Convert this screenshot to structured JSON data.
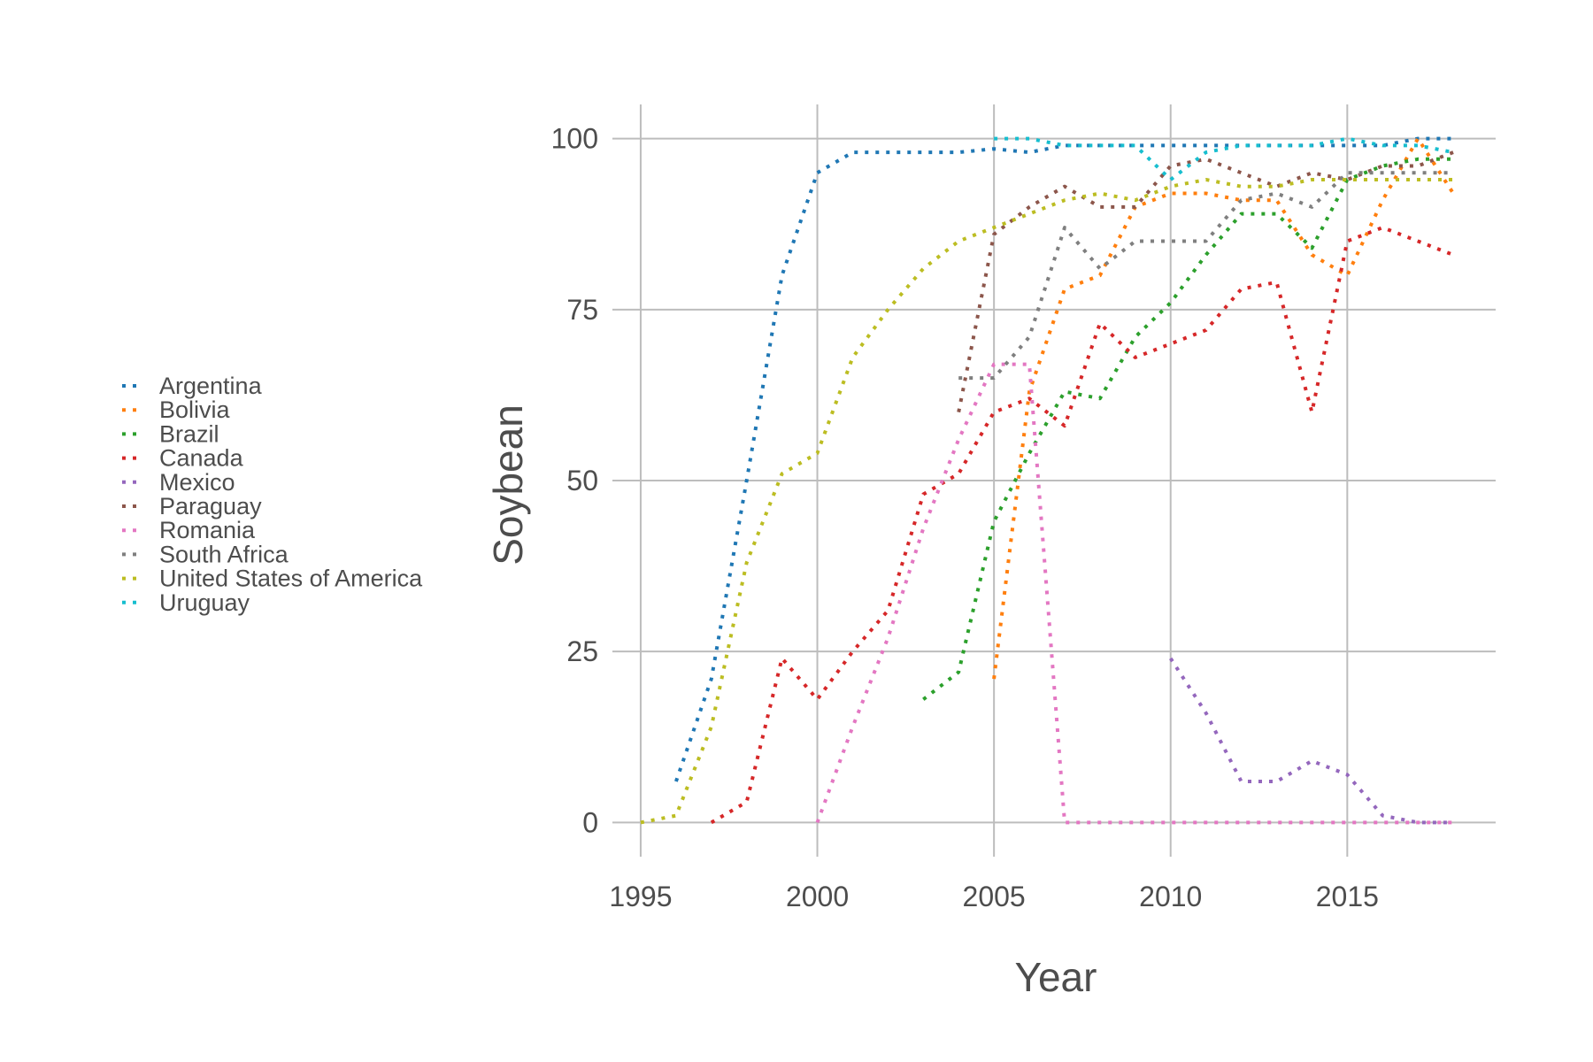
{
  "chart_data": {
    "type": "line",
    "title": "",
    "xlabel": "Year",
    "ylabel": "Soybean",
    "xlim": [
      1994.2,
      2019.2
    ],
    "ylim": [
      -5,
      105
    ],
    "x_ticks": [
      1995,
      2000,
      2005,
      2010,
      2015
    ],
    "y_ticks": [
      0,
      25,
      50,
      75,
      100
    ],
    "grid": true,
    "line_style": "dotted",
    "legend_position": "left",
    "series": [
      {
        "name": "Argentina",
        "color": "#1f77b4",
        "points": [
          [
            1996,
            6
          ],
          [
            1997,
            21
          ],
          [
            1998,
            50
          ],
          [
            1999,
            80
          ],
          [
            2000,
            95
          ],
          [
            2001,
            98
          ],
          [
            2002,
            98
          ],
          [
            2003,
            98
          ],
          [
            2004,
            98
          ],
          [
            2005,
            98.5
          ],
          [
            2006,
            98
          ],
          [
            2007,
            99
          ],
          [
            2008,
            99
          ],
          [
            2009,
            99
          ],
          [
            2010,
            99
          ],
          [
            2011,
            99
          ],
          [
            2012,
            99
          ],
          [
            2013,
            99
          ],
          [
            2014,
            99
          ],
          [
            2015,
            99
          ],
          [
            2016,
            99
          ],
          [
            2017,
            100
          ],
          [
            2018,
            100
          ]
        ]
      },
      {
        "name": "Bolivia",
        "color": "#ff7f0e",
        "points": [
          [
            2005,
            21
          ],
          [
            2006,
            63
          ],
          [
            2007,
            78
          ],
          [
            2008,
            80
          ],
          [
            2009,
            90
          ],
          [
            2010,
            92
          ],
          [
            2011,
            92
          ],
          [
            2012,
            91
          ],
          [
            2013,
            91
          ],
          [
            2014,
            83
          ],
          [
            2015,
            80
          ],
          [
            2016,
            91
          ],
          [
            2017,
            100
          ],
          [
            2018,
            92
          ]
        ]
      },
      {
        "name": "Brazil",
        "color": "#2ca02c",
        "points": [
          [
            2003,
            18
          ],
          [
            2004,
            22
          ],
          [
            2005,
            44
          ],
          [
            2006,
            54
          ],
          [
            2007,
            63
          ],
          [
            2008,
            62
          ],
          [
            2009,
            71
          ],
          [
            2010,
            76
          ],
          [
            2011,
            83
          ],
          [
            2012,
            89
          ],
          [
            2013,
            89
          ],
          [
            2014,
            84
          ],
          [
            2015,
            94
          ],
          [
            2016,
            96
          ],
          [
            2017,
            97
          ],
          [
            2018,
            97
          ]
        ]
      },
      {
        "name": "Canada",
        "color": "#d62728",
        "points": [
          [
            1997,
            0
          ],
          [
            1998,
            3
          ],
          [
            1999,
            24
          ],
          [
            2000,
            18
          ],
          [
            2001,
            25
          ],
          [
            2002,
            31
          ],
          [
            2003,
            48
          ],
          [
            2004,
            51
          ],
          [
            2005,
            60
          ],
          [
            2006,
            62
          ],
          [
            2007,
            58
          ],
          [
            2008,
            73
          ],
          [
            2009,
            68
          ],
          [
            2010,
            70
          ],
          [
            2011,
            72
          ],
          [
            2012,
            78
          ],
          [
            2013,
            79
          ],
          [
            2014,
            60
          ],
          [
            2015,
            85
          ],
          [
            2016,
            87
          ],
          [
            2017,
            85
          ],
          [
            2018,
            83
          ]
        ]
      },
      {
        "name": "Mexico",
        "color": "#9467bd",
        "points": [
          [
            2010,
            24
          ],
          [
            2011,
            16
          ],
          [
            2012,
            6
          ],
          [
            2013,
            6
          ],
          [
            2014,
            9
          ],
          [
            2015,
            7
          ],
          [
            2016,
            1
          ],
          [
            2017,
            0
          ],
          [
            2018,
            0
          ]
        ]
      },
      {
        "name": "Paraguay",
        "color": "#8c564b",
        "points": [
          [
            2004,
            60
          ],
          [
            2005,
            86
          ],
          [
            2006,
            90
          ],
          [
            2007,
            93
          ],
          [
            2008,
            90
          ],
          [
            2009,
            90
          ],
          [
            2010,
            96
          ],
          [
            2011,
            97
          ],
          [
            2012,
            95
          ],
          [
            2013,
            93
          ],
          [
            2014,
            95
          ],
          [
            2015,
            94
          ],
          [
            2016,
            96
          ],
          [
            2017,
            96
          ],
          [
            2018,
            98
          ]
        ]
      },
      {
        "name": "Romania",
        "color": "#e377c2",
        "points": [
          [
            2000,
            0
          ],
          [
            2001,
            14
          ],
          [
            2002,
            27
          ],
          [
            2003,
            43
          ],
          [
            2004,
            56
          ],
          [
            2005,
            67
          ],
          [
            2006,
            67
          ],
          [
            2007,
            0
          ],
          [
            2008,
            0
          ],
          [
            2009,
            0
          ],
          [
            2010,
            0
          ],
          [
            2011,
            0
          ],
          [
            2012,
            0
          ],
          [
            2013,
            0
          ],
          [
            2014,
            0
          ],
          [
            2015,
            0
          ],
          [
            2016,
            0
          ],
          [
            2017,
            0
          ],
          [
            2018,
            0
          ]
        ]
      },
      {
        "name": "South Africa",
        "color": "#7f7f7f",
        "points": [
          [
            2004,
            65
          ],
          [
            2005,
            65
          ],
          [
            2006,
            71
          ],
          [
            2007,
            87
          ],
          [
            2008,
            81
          ],
          [
            2009,
            85
          ],
          [
            2010,
            85
          ],
          [
            2011,
            85
          ],
          [
            2012,
            91
          ],
          [
            2013,
            92
          ],
          [
            2014,
            90
          ],
          [
            2015,
            95
          ],
          [
            2016,
            95
          ],
          [
            2017,
            95
          ],
          [
            2018,
            95
          ]
        ]
      },
      {
        "name": "United States of America",
        "color": "#bcbd22",
        "points": [
          [
            1995,
            0
          ],
          [
            1996,
            1
          ],
          [
            1997,
            14
          ],
          [
            1998,
            38
          ],
          [
            1999,
            51
          ],
          [
            2000,
            54
          ],
          [
            2001,
            68
          ],
          [
            2002,
            75
          ],
          [
            2003,
            81
          ],
          [
            2004,
            85
          ],
          [
            2005,
            87
          ],
          [
            2006,
            89
          ],
          [
            2007,
            91
          ],
          [
            2008,
            92
          ],
          [
            2009,
            91
          ],
          [
            2010,
            93
          ],
          [
            2011,
            94
          ],
          [
            2012,
            93
          ],
          [
            2013,
            93
          ],
          [
            2014,
            94
          ],
          [
            2015,
            94
          ],
          [
            2016,
            94
          ],
          [
            2017,
            94
          ],
          [
            2018,
            94
          ]
        ]
      },
      {
        "name": "Uruguay",
        "color": "#17becf",
        "points": [
          [
            2005,
            100
          ],
          [
            2006,
            100
          ],
          [
            2007,
            99
          ],
          [
            2008,
            99
          ],
          [
            2009,
            99
          ],
          [
            2010,
            94
          ],
          [
            2011,
            98
          ],
          [
            2012,
            99
          ],
          [
            2013,
            99
          ],
          [
            2014,
            99
          ],
          [
            2015,
            100
          ],
          [
            2016,
            99
          ],
          [
            2017,
            99
          ],
          [
            2018,
            98
          ]
        ]
      }
    ]
  }
}
